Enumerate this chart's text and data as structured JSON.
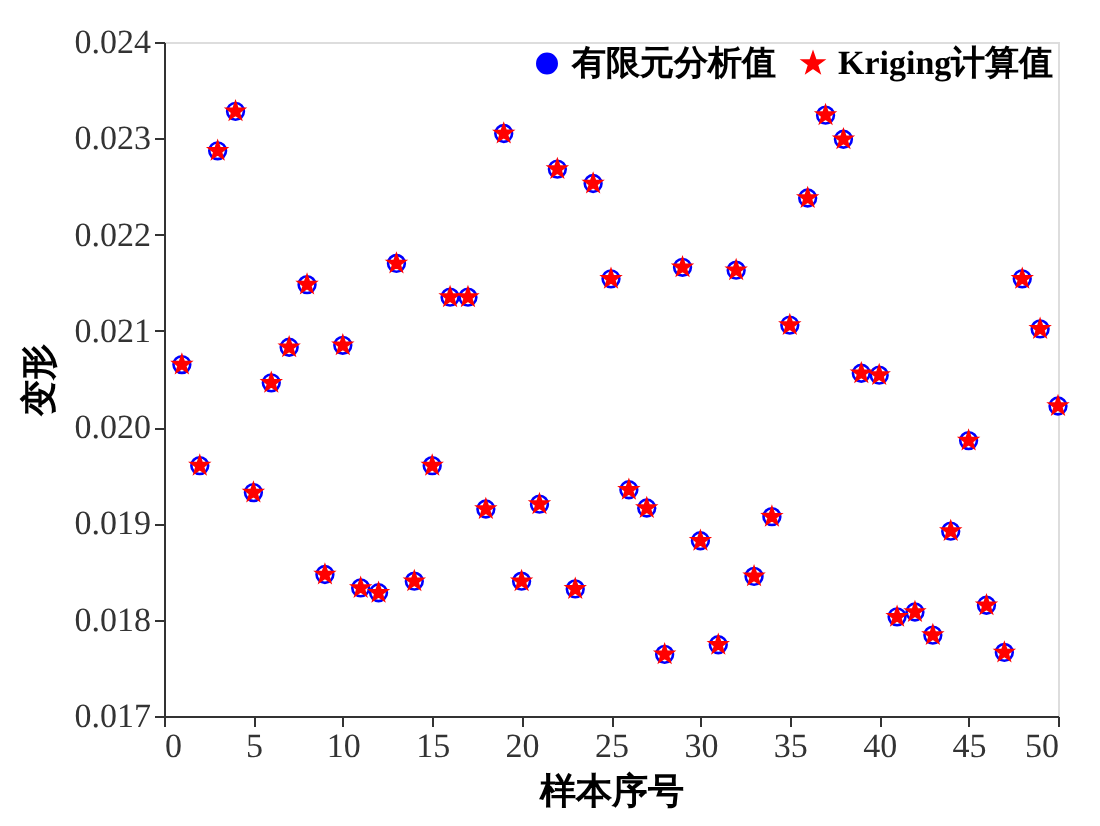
{
  "chart_data": {
    "type": "scatter",
    "xlabel": "样本序号",
    "ylabel": "变形",
    "xlim": [
      0,
      50
    ],
    "xticks": [
      0,
      5,
      10,
      15,
      20,
      25,
      30,
      35,
      40,
      45,
      50
    ],
    "ylim": [
      0.017,
      0.024
    ],
    "yticks": [
      0.017,
      0.018,
      0.019,
      {
        "value": 0.02,
        "label": "0.020"
      },
      0.021,
      0.022,
      0.023,
      0.024
    ],
    "grid": false,
    "legend": "top right",
    "x": [
      1,
      2,
      3,
      4,
      5,
      6,
      7,
      8,
      9,
      10,
      11,
      12,
      13,
      14,
      15,
      16,
      17,
      18,
      19,
      20,
      21,
      22,
      23,
      24,
      25,
      26,
      27,
      28,
      29,
      30,
      31,
      32,
      33,
      34,
      35,
      36,
      37,
      38,
      39,
      40,
      41,
      42,
      43,
      44,
      45,
      46,
      47,
      48,
      49,
      50
    ],
    "series": [
      {
        "name": "有限元分析值",
        "color": "#0000ff",
        "marker": "circle",
        "values": [
          0.02065,
          0.0196,
          0.02287,
          0.02328,
          0.01932,
          0.02046,
          0.02083,
          0.02148,
          0.01847,
          0.02085,
          0.01833,
          0.01828,
          0.0217,
          0.0184,
          0.0196,
          0.02135,
          0.02135,
          0.01915,
          0.02305,
          0.0184,
          0.0192,
          0.02268,
          0.01832,
          0.02253,
          0.02154,
          0.01935,
          0.01916,
          0.01764,
          0.02166,
          0.01882,
          0.01774,
          0.02163,
          0.01845,
          0.01907,
          0.02106,
          0.02238,
          0.02324,
          0.02299,
          0.02056,
          0.02054,
          0.01803,
          0.01808,
          0.01784,
          0.01892,
          0.01986,
          0.01815,
          0.01766,
          0.02154,
          0.02102,
          0.02022
        ]
      },
      {
        "name": "Kriging计算值",
        "color": "#ff0000",
        "marker": "star",
        "values": [
          0.02065,
          0.0196,
          0.02287,
          0.02328,
          0.01932,
          0.02046,
          0.02083,
          0.02148,
          0.01847,
          0.02085,
          0.01833,
          0.01828,
          0.0217,
          0.0184,
          0.0196,
          0.02135,
          0.02135,
          0.01915,
          0.02305,
          0.0184,
          0.0192,
          0.02268,
          0.01832,
          0.02253,
          0.02154,
          0.01935,
          0.01916,
          0.01764,
          0.02166,
          0.01882,
          0.01774,
          0.02163,
          0.01845,
          0.01907,
          0.02106,
          0.02238,
          0.02324,
          0.02299,
          0.02056,
          0.02054,
          0.01803,
          0.01808,
          0.01784,
          0.01892,
          0.01986,
          0.01815,
          0.01766,
          0.02154,
          0.02102,
          0.02022
        ]
      }
    ]
  }
}
